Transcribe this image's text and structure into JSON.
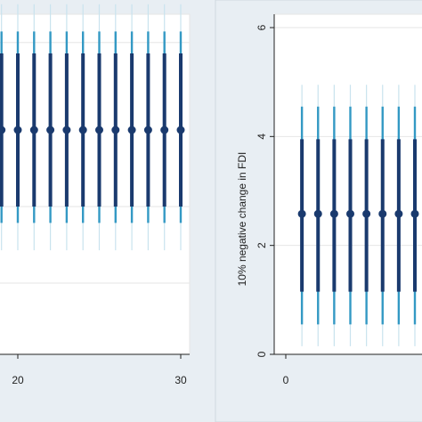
{
  "colors": {
    "background": "#e8eef3",
    "panel": "#ffffff",
    "grid": "#e6e6e6",
    "axis": "#222222",
    "interval_outer": "#c9e3ee",
    "interval_mid": "#3399c4",
    "interval_inner": "#1a3a6e",
    "point": "#1a3a6e"
  },
  "chart_data": [
    {
      "type": "dot-whisker",
      "title": "",
      "xlabel": "",
      "ylabel": "",
      "xlim": [
        18.9,
        30.5
      ],
      "x_ticks": [
        {
          "value": 20,
          "label": "20"
        },
        {
          "value": 30,
          "label": "30"
        }
      ],
      "grid": true,
      "y_gridlines": [
        4.2,
        3.5,
        2.0,
        1.3
      ],
      "x": [
        19,
        20,
        21,
        22,
        23,
        24,
        25,
        26,
        27,
        28,
        29,
        30
      ],
      "estimate": 2.7,
      "ci_inner": [
        2.0,
        3.4
      ],
      "ci_mid": [
        1.85,
        3.6
      ],
      "ci_outer": [
        1.6,
        3.85
      ]
    },
    {
      "type": "dot-whisker",
      "title": "",
      "xlabel": "",
      "ylabel": "10% negative change in FDI",
      "xlim": [
        -0.3,
        8
      ],
      "ylim": [
        -0.1,
        6
      ],
      "y_ticks": [
        {
          "value": 0,
          "label": "0"
        },
        {
          "value": 2,
          "label": "2"
        },
        {
          "value": 4,
          "label": "4"
        },
        {
          "value": 6,
          "label": "6"
        }
      ],
      "x_ticks": [
        {
          "value": 0,
          "label": "0"
        }
      ],
      "grid": true,
      "y_gridlines": [
        0,
        2,
        4,
        6
      ],
      "x": [
        1,
        2,
        3,
        4,
        5,
        6,
        7,
        8
      ],
      "estimate": 2.58,
      "ci_inner": [
        1.15,
        3.95
      ],
      "ci_mid": [
        0.55,
        4.55
      ],
      "ci_outer": [
        0.15,
        4.95
      ]
    }
  ]
}
